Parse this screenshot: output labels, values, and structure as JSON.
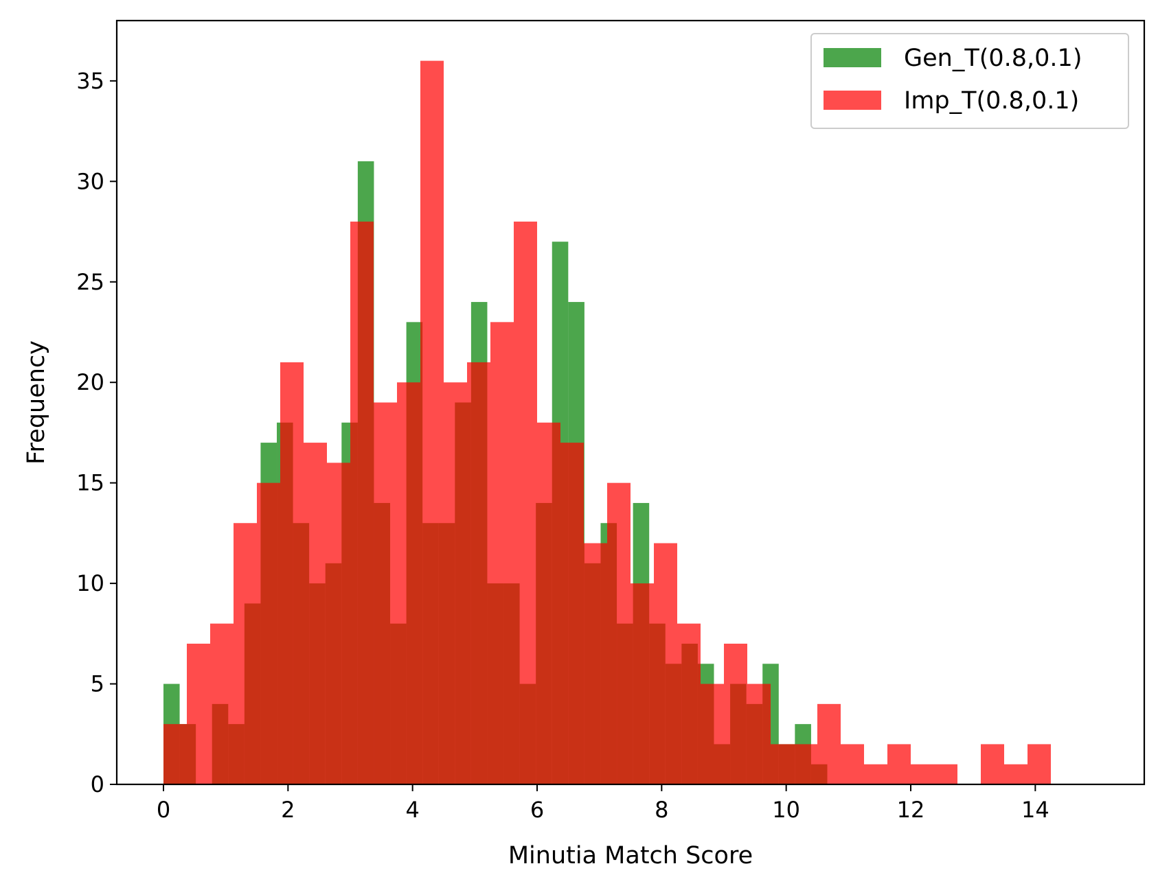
{
  "chart_data": {
    "type": "bar",
    "title": "",
    "xlabel": "Minutia Match Score",
    "ylabel": "Frequency",
    "xlim": [
      -0.75,
      15.75
    ],
    "ylim": [
      0,
      38
    ],
    "xticks": [
      0,
      2,
      4,
      6,
      8,
      10,
      12,
      14
    ],
    "yticks": [
      0,
      5,
      10,
      15,
      20,
      25,
      30,
      35
    ],
    "legend_position": "top-right",
    "grid": false,
    "series": [
      {
        "name": "Gen_T(0.8,0.1)",
        "color": "#008000",
        "opacity": 0.7,
        "bin_start": 0,
        "bin_width": 0.26,
        "values": [
          5,
          3,
          0,
          4,
          3,
          9,
          17,
          18,
          13,
          10,
          11,
          18,
          31,
          14,
          8,
          23,
          13,
          13,
          19,
          24,
          10,
          10,
          5,
          14,
          27,
          24,
          11,
          13,
          8,
          14,
          8,
          6,
          7,
          6,
          2,
          5,
          4,
          6,
          2,
          3,
          1
        ]
      },
      {
        "name": "Imp_T(0.8,0.1)",
        "color": "#ff0000",
        "opacity": 0.7,
        "bin_start": 0,
        "bin_width": 0.375,
        "values": [
          3,
          7,
          8,
          13,
          15,
          21,
          17,
          16,
          28,
          19,
          20,
          36,
          20,
          21,
          23,
          28,
          18,
          17,
          12,
          15,
          10,
          12,
          8,
          5,
          7,
          5,
          2,
          2,
          4,
          2,
          1,
          2,
          1,
          1,
          0,
          2,
          1,
          2
        ]
      }
    ]
  }
}
